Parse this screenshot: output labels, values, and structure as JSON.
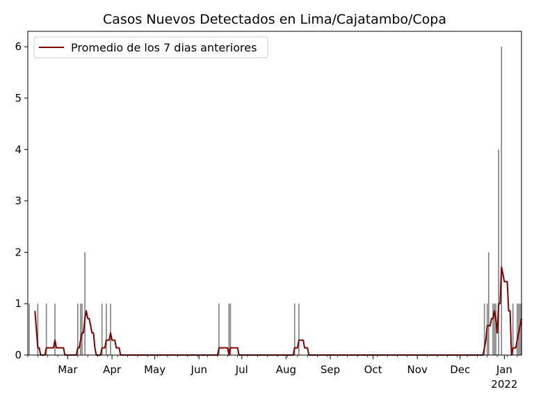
{
  "chart_data": {
    "type": "bar",
    "title": "Casos Nuevos Detectados en Lima/Cajatambo/Copa",
    "xlabel": "",
    "ylabel": "",
    "x_start": "2021-02-01",
    "x_end": "2022-01-13",
    "ylim": [
      0,
      6.3
    ],
    "yticks": [
      0,
      1,
      2,
      3,
      4,
      5,
      6
    ],
    "xticks": [
      {
        "date": "2021-03-01",
        "label": "Mar"
      },
      {
        "date": "2021-04-01",
        "label": "Apr"
      },
      {
        "date": "2021-05-01",
        "label": "May"
      },
      {
        "date": "2021-06-01",
        "label": "Jun"
      },
      {
        "date": "2021-07-01",
        "label": "Jul"
      },
      {
        "date": "2021-08-01",
        "label": "Aug"
      },
      {
        "date": "2021-09-01",
        "label": "Sep"
      },
      {
        "date": "2021-10-01",
        "label": "Oct"
      },
      {
        "date": "2021-11-01",
        "label": "Nov"
      },
      {
        "date": "2021-12-01",
        "label": "Dec"
      },
      {
        "date": "2022-01-01",
        "label": "Jan",
        "sublabel": "2022"
      }
    ],
    "grid": false,
    "legend": {
      "position": "upper left"
    },
    "bars": {
      "color": "#808080",
      "points": [
        [
          "2021-02-02",
          1
        ],
        [
          "2021-02-08",
          1
        ],
        [
          "2021-02-14",
          1
        ],
        [
          "2021-02-20",
          1
        ],
        [
          "2021-03-08",
          1
        ],
        [
          "2021-03-10",
          1
        ],
        [
          "2021-03-11",
          1
        ],
        [
          "2021-03-13",
          2
        ],
        [
          "2021-03-25",
          1
        ],
        [
          "2021-03-28",
          1
        ],
        [
          "2021-03-31",
          1
        ],
        [
          "2021-06-15",
          1
        ],
        [
          "2021-06-22",
          1
        ],
        [
          "2021-06-23",
          1
        ],
        [
          "2021-08-07",
          1
        ],
        [
          "2021-08-10",
          1
        ],
        [
          "2021-12-18",
          1
        ],
        [
          "2021-12-20",
          1
        ],
        [
          "2021-12-21",
          2
        ],
        [
          "2021-12-24",
          1
        ],
        [
          "2021-12-25",
          1
        ],
        [
          "2021-12-26",
          1
        ],
        [
          "2021-12-28",
          4
        ],
        [
          "2021-12-30",
          6
        ],
        [
          "2022-01-07",
          1
        ],
        [
          "2022-01-10",
          1
        ],
        [
          "2022-01-11",
          1
        ],
        [
          "2022-01-12",
          1
        ],
        [
          "2022-01-13",
          1
        ]
      ]
    },
    "series": [
      {
        "name": "Promedio de los 7 dias anteriores",
        "color": "#800000",
        "points": [
          [
            "2021-02-06",
            0.86
          ],
          [
            "2021-02-08",
            0.14
          ],
          [
            "2021-02-09",
            0.14
          ],
          [
            "2021-02-10",
            0
          ],
          [
            "2021-02-13",
            0
          ],
          [
            "2021-02-14",
            0.14
          ],
          [
            "2021-02-19",
            0.14
          ],
          [
            "2021-02-20",
            0.29
          ],
          [
            "2021-02-21",
            0.14
          ],
          [
            "2021-02-26",
            0.14
          ],
          [
            "2021-02-27",
            0
          ],
          [
            "2021-03-07",
            0
          ],
          [
            "2021-03-08",
            0.14
          ],
          [
            "2021-03-09",
            0.14
          ],
          [
            "2021-03-10",
            0.29
          ],
          [
            "2021-03-11",
            0.43
          ],
          [
            "2021-03-12",
            0.43
          ],
          [
            "2021-03-13",
            0.71
          ],
          [
            "2021-03-14",
            0.86
          ],
          [
            "2021-03-15",
            0.71
          ],
          [
            "2021-03-16",
            0.71
          ],
          [
            "2021-03-17",
            0.57
          ],
          [
            "2021-03-18",
            0.43
          ],
          [
            "2021-03-19",
            0.43
          ],
          [
            "2021-03-20",
            0.14
          ],
          [
            "2021-03-21",
            0
          ],
          [
            "2021-03-24",
            0
          ],
          [
            "2021-03-25",
            0.14
          ],
          [
            "2021-03-27",
            0.14
          ],
          [
            "2021-03-28",
            0.29
          ],
          [
            "2021-03-30",
            0.29
          ],
          [
            "2021-03-31",
            0.43
          ],
          [
            "2021-04-01",
            0.29
          ],
          [
            "2021-04-03",
            0.29
          ],
          [
            "2021-04-04",
            0.14
          ],
          [
            "2021-04-06",
            0.14
          ],
          [
            "2021-04-07",
            0
          ],
          [
            "2021-06-14",
            0
          ],
          [
            "2021-06-15",
            0.14
          ],
          [
            "2021-06-21",
            0.14
          ],
          [
            "2021-06-22",
            0
          ],
          [
            "2021-06-23",
            0.14
          ],
          [
            "2021-06-28",
            0.14
          ],
          [
            "2021-06-29",
            0
          ],
          [
            "2021-08-06",
            0
          ],
          [
            "2021-08-07",
            0.14
          ],
          [
            "2021-08-09",
            0.14
          ],
          [
            "2021-08-10",
            0.29
          ],
          [
            "2021-08-13",
            0.29
          ],
          [
            "2021-08-14",
            0.14
          ],
          [
            "2021-08-16",
            0.14
          ],
          [
            "2021-08-17",
            0
          ],
          [
            "2021-12-17",
            0
          ],
          [
            "2021-12-18",
            0.14
          ],
          [
            "2021-12-19",
            0.29
          ],
          [
            "2021-12-20",
            0.57
          ],
          [
            "2021-12-22",
            0.57
          ],
          [
            "2021-12-23",
            0.71
          ],
          [
            "2021-12-24",
            0.71
          ],
          [
            "2021-12-25",
            0.86
          ],
          [
            "2021-12-26",
            0.71
          ],
          [
            "2021-12-27",
            0.43
          ],
          [
            "2021-12-28",
            1.0
          ],
          [
            "2021-12-29",
            1.0
          ],
          [
            "2021-12-30",
            1.71
          ],
          [
            "2021-12-31",
            1.57
          ],
          [
            "2022-01-01",
            1.43
          ],
          [
            "2022-01-03",
            1.43
          ],
          [
            "2022-01-04",
            0.86
          ],
          [
            "2022-01-05",
            0.86
          ],
          [
            "2022-01-06",
            0
          ],
          [
            "2022-01-07",
            0.14
          ],
          [
            "2022-01-09",
            0.14
          ],
          [
            "2022-01-10",
            0.29
          ],
          [
            "2022-01-12",
            0.57
          ],
          [
            "2022-01-13",
            0.71
          ]
        ]
      }
    ]
  }
}
